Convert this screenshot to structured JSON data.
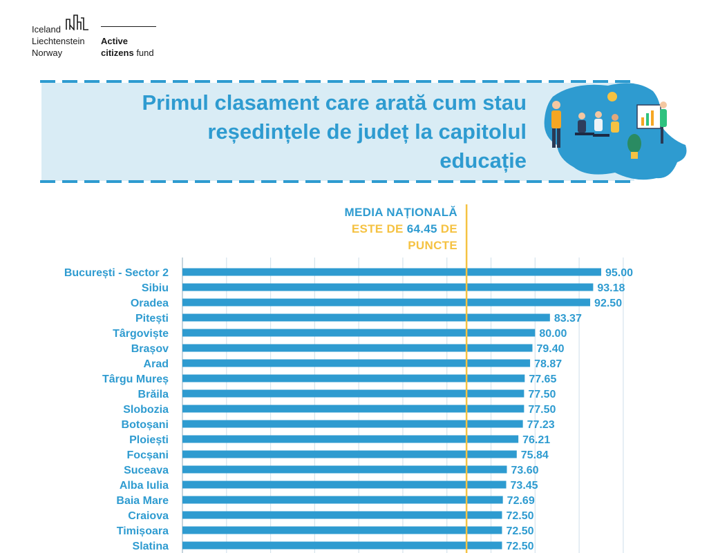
{
  "logo": {
    "countries": [
      "Iceland",
      "Liechtenstein",
      "Norway"
    ],
    "fund_line1": "Active",
    "fund_line2_bold": "citizens",
    "fund_line2_plain": "fund"
  },
  "banner": {
    "title_lines": [
      "Primul clasament care arată cum stau",
      "reședințele de județ la capitolul",
      "educație"
    ]
  },
  "national_average": {
    "line1": "MEDIA NAȚIONALĂ",
    "line2_a": "ESTE DE",
    "value_text": "64.45",
    "line2_b": "DE",
    "line3": "PUNCTE",
    "value": 64.45
  },
  "colors": {
    "bar": "#2e9bd0",
    "accent": "#f5c242",
    "banner_bg": "#d9ecf5",
    "grid": "#d5e3ec"
  },
  "chart_data": {
    "type": "bar",
    "orientation": "horizontal",
    "categories": [
      "București - Sector 2",
      "Sibiu",
      "Oradea",
      "Pitești",
      "Târgoviște",
      "Brașov",
      "Arad",
      "Târgu Mureș",
      "Brăila",
      "Slobozia",
      "Botoșani",
      "Ploiești",
      "Focșani",
      "Suceava",
      "Alba Iulia",
      "Baia Mare",
      "Craiova",
      "Timișoara",
      "Slatina"
    ],
    "values": [
      95.0,
      93.18,
      92.5,
      83.37,
      80.0,
      79.4,
      78.87,
      77.65,
      77.5,
      77.5,
      77.23,
      76.21,
      75.84,
      73.6,
      73.45,
      72.69,
      72.5,
      72.5,
      72.5
    ],
    "value_labels": [
      "95.00",
      "93.18",
      "92.50",
      "83.37",
      "80.00",
      "79.40",
      "78.87",
      "77.65",
      "77.50",
      "77.50",
      "77.23",
      "76.21",
      "75.84",
      "73.60",
      "73.45",
      "72.69",
      "72.50",
      "72.50",
      "72.50"
    ],
    "reference_line": 64.45,
    "xlim": [
      0,
      100
    ],
    "grid": true
  }
}
